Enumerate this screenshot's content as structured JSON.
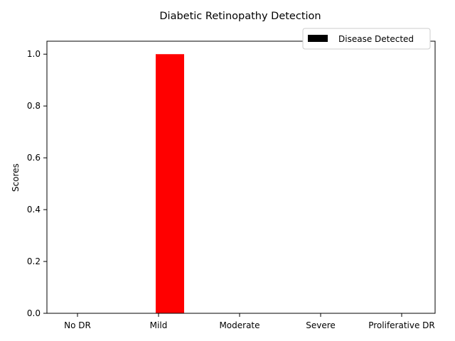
{
  "chart_data": {
    "type": "bar",
    "title": "Diabetic Retinopathy Detection",
    "xlabel": "",
    "ylabel": "Scores",
    "categories": [
      "No DR",
      "Mild",
      "Moderate",
      "Severe",
      "Proliferative DR"
    ],
    "series": [
      {
        "name": "Disease Detected",
        "values": [
          0,
          1.0,
          0,
          0,
          0
        ],
        "color": "#ff0000"
      }
    ],
    "legend_swatch_color": "#000000",
    "ylim": [
      0,
      1.05
    ],
    "yticks": [
      "0.0",
      "0.2",
      "0.4",
      "0.6",
      "0.8",
      "1.0"
    ],
    "legend_position": "top-right",
    "grid": false
  }
}
